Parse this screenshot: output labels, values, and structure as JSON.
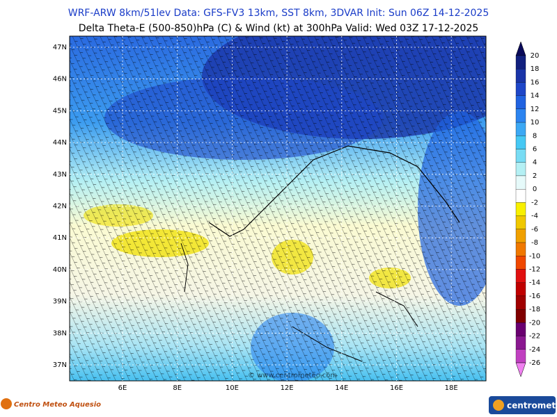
{
  "header": {
    "line1": "WRF-ARW 8km/51lev   Data: GFS-FV3 13km, SST 8km, 3DVAR   Init: Sun 06Z 14-12-2025",
    "line2": "Delta Theta-E (500-850)hPa (C) & Wind (kt) at 300hPa    Valid: Wed 03Z 17-12-2025"
  },
  "map": {
    "lat_labels": [
      "47N",
      "46N",
      "45N",
      "44N",
      "43N",
      "42N",
      "41N",
      "40N",
      "39N",
      "38N",
      "37N"
    ],
    "lon_labels": [
      "6E",
      "8E",
      "10E",
      "12E",
      "14E",
      "16E",
      "18E"
    ],
    "watermark": "© www.centrometeo.com"
  },
  "colorbar": {
    "labels": [
      20,
      18,
      16,
      14,
      12,
      10,
      8,
      6,
      4,
      2,
      0,
      -2,
      -4,
      -6,
      -8,
      -10,
      -12,
      -14,
      -16,
      -18,
      -20,
      -22,
      -24,
      -26
    ],
    "colors": [
      "#0a0a5a",
      "#12207e",
      "#1a34a8",
      "#1e46c8",
      "#2062e0",
      "#2c84f0",
      "#3ca8f4",
      "#46c8f4",
      "#78dcf4",
      "#b4f0f4",
      "#e6fafa",
      "#ffffff",
      "#f8f000",
      "#f0c800",
      "#f0a000",
      "#f07800",
      "#f04800",
      "#e01010",
      "#c00000",
      "#a00000",
      "#800000",
      "#6a0070",
      "#8a1890",
      "#c040c0",
      "#f080f0"
    ]
  },
  "footer": {
    "left_logo": "Centro Meteo Aquesio",
    "right_logo": "centrometeo"
  }
}
